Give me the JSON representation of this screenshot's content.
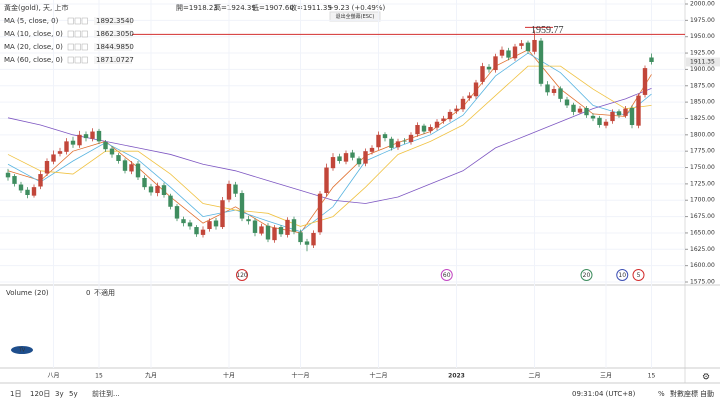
{
  "header": {
    "symbol": "黃金(gold), 天, 上市",
    "ohlc": [
      "開=1918.23",
      "高=1924.39",
      "低=1907.60",
      "收=1911.35"
    ],
    "change": "+9.23 (+0.49%)",
    "tooltip": "退出全螢幕(ESC)"
  },
  "chart_data": {
    "type": "candlestick",
    "open": [
      1742,
      1737,
      1724,
      1716,
      1707,
      1721,
      1741,
      1759,
      1771,
      1774,
      1791,
      1784,
      1801,
      1794,
      1806,
      1789,
      1779,
      1769,
      1761,
      1744,
      1756,
      1734,
      1721,
      1711,
      1723,
      1707,
      1691,
      1671,
      1666,
      1659,
      1647,
      1656,
      1669,
      1659,
      1701,
      1724,
      1711,
      1671,
      1669,
      1649,
      1661,
      1639,
      1659,
      1647,
      1671,
      1651,
      1637,
      1631,
      1651,
      1711,
      1749,
      1767,
      1759,
      1773,
      1764,
      1756,
      1774,
      1781,
      1801,
      1794,
      1781,
      1791,
      1789,
      1801,
      1814,
      1806,
      1811,
      1821,
      1824,
      1836,
      1839,
      1856,
      1859,
      1881,
      1904,
      1899,
      1921,
      1929,
      1917,
      1936,
      1941,
      1927,
      1944,
      1877,
      1864,
      1871,
      1854,
      1846,
      1834,
      1841,
      1829,
      1826,
      1814,
      1821,
      1836,
      1829,
      1841,
      1814,
      1861,
      1918.23
    ],
    "high": [
      1748,
      1740,
      1728,
      1720,
      1724,
      1745,
      1764,
      1776,
      1780,
      1795,
      1797,
      1806,
      1805,
      1810,
      1809,
      1792,
      1783,
      1772,
      1764,
      1760,
      1760,
      1738,
      1725,
      1727,
      1727,
      1710,
      1694,
      1675,
      1670,
      1662,
      1660,
      1672,
      1673,
      1705,
      1730,
      1728,
      1715,
      1676,
      1673,
      1664,
      1665,
      1662,
      1662,
      1674,
      1675,
      1655,
      1641,
      1654,
      1714,
      1756,
      1772,
      1771,
      1776,
      1777,
      1767,
      1779,
      1784,
      1805,
      1804,
      1797,
      1794,
      1795,
      1804,
      1819,
      1817,
      1816,
      1824,
      1829,
      1839,
      1845,
      1859,
      1865,
      1884,
      1910,
      1908,
      1924,
      1935,
      1933,
      1939,
      1945,
      1944,
      1959.77,
      1948,
      1882,
      1875,
      1874,
      1858,
      1849,
      1844,
      1844,
      1833,
      1829,
      1824,
      1839,
      1839,
      1844,
      1845,
      1863,
      1906,
      1924.39
    ],
    "low": [
      1730,
      1721,
      1711,
      1703,
      1704,
      1717,
      1737,
      1755,
      1767,
      1770,
      1780,
      1780,
      1790,
      1790,
      1786,
      1774,
      1765,
      1756,
      1741,
      1740,
      1731,
      1716,
      1707,
      1706,
      1704,
      1686,
      1668,
      1660,
      1655,
      1644,
      1643,
      1652,
      1655,
      1656,
      1697,
      1705,
      1668,
      1663,
      1645,
      1646,
      1636,
      1635,
      1644,
      1643,
      1648,
      1632,
      1622,
      1627,
      1647,
      1706,
      1745,
      1756,
      1755,
      1761,
      1751,
      1752,
      1770,
      1777,
      1790,
      1776,
      1777,
      1786,
      1785,
      1797,
      1801,
      1802,
      1807,
      1817,
      1820,
      1832,
      1835,
      1852,
      1855,
      1877,
      1895,
      1895,
      1917,
      1914,
      1913,
      1931,
      1924,
      1923,
      1874,
      1860,
      1860,
      1850,
      1841,
      1830,
      1832,
      1826,
      1821,
      1811,
      1810,
      1817,
      1826,
      1826,
      1810,
      1810,
      1857,
      1907.6
    ],
    "close": [
      1735,
      1725,
      1715,
      1708,
      1720,
      1740,
      1760,
      1770,
      1775,
      1790,
      1785,
      1800,
      1795,
      1805,
      1790,
      1778,
      1770,
      1760,
      1745,
      1755,
      1735,
      1720,
      1712,
      1722,
      1708,
      1690,
      1672,
      1665,
      1660,
      1648,
      1655,
      1668,
      1660,
      1700,
      1725,
      1710,
      1672,
      1668,
      1650,
      1660,
      1640,
      1658,
      1648,
      1670,
      1652,
      1636,
      1632,
      1650,
      1710,
      1750,
      1766,
      1760,
      1772,
      1765,
      1755,
      1775,
      1780,
      1800,
      1795,
      1780,
      1790,
      1790,
      1800,
      1815,
      1805,
      1812,
      1820,
      1825,
      1835,
      1840,
      1855,
      1860,
      1880,
      1905,
      1900,
      1920,
      1930,
      1918,
      1935,
      1940,
      1928,
      1945,
      1878,
      1865,
      1870,
      1855,
      1845,
      1835,
      1840,
      1830,
      1825,
      1815,
      1820,
      1835,
      1830,
      1840,
      1815,
      1860,
      1902,
      1911.35
    ],
    "up_color": "#c2463a",
    "down_color": "#3f8d5f",
    "ylim": [
      1575,
      2000
    ],
    "yticks": [
      {
        "value": 1575,
        "label": "1575.00"
      },
      {
        "value": 1600,
        "label": "1600.00"
      },
      {
        "value": 1625,
        "label": "1625.00"
      },
      {
        "value": 1650,
        "label": "1650.00"
      },
      {
        "value": 1675,
        "label": "1675.00"
      },
      {
        "value": 1700,
        "label": "1700.00"
      },
      {
        "value": 1725,
        "label": "1725.00"
      },
      {
        "value": 1750,
        "label": "1750.00"
      },
      {
        "value": 1775,
        "label": "1775.00"
      },
      {
        "value": 1800,
        "label": "1800.00"
      },
      {
        "value": 1825,
        "label": "1825.00"
      },
      {
        "value": 1850,
        "label": "1850.00"
      },
      {
        "value": 1875,
        "label": "1875.00"
      },
      {
        "value": 1900,
        "label": "1900.00"
      },
      {
        "value": 1925,
        "label": "1925.00"
      },
      {
        "value": 1950,
        "label": "1950.00"
      },
      {
        "value": 1975,
        "label": "1975.00"
      },
      {
        "value": 2000,
        "label": "2000.00"
      }
    ],
    "xticks": [
      {
        "value": 7,
        "label": "八月"
      },
      {
        "value": 14,
        "label": "15"
      },
      {
        "value": 22,
        "label": "九月"
      },
      {
        "value": 34,
        "label": "十月"
      },
      {
        "value": 45,
        "label": "十一月"
      },
      {
        "value": 57,
        "label": "十二月"
      },
      {
        "value": 69,
        "label": "2023"
      },
      {
        "value": 81,
        "label": "二月"
      },
      {
        "value": 92,
        "label": "三月"
      },
      {
        "value": 99,
        "label": "15"
      }
    ],
    "ma_x": [
      0,
      5,
      10,
      15,
      20,
      25,
      30,
      35,
      40,
      45,
      50,
      55,
      60,
      65,
      70,
      75,
      80,
      85,
      90,
      95,
      99
    ],
    "ma_series": [
      {
        "name": "MA (5, close, 0)",
        "color": "#e0702e",
        "value_label": "1892.3540",
        "values": [
          1745,
          1730,
          1775,
          1790,
          1750,
          1705,
          1665,
          1690,
          1660,
          1650,
          1720,
          1768,
          1788,
          1805,
          1843,
          1905,
          1930,
          1870,
          1832,
          1828,
          1892.354
        ]
      },
      {
        "name": "MA (10, close, 0)",
        "color": "#58b4e0",
        "value_label": "1862.3050",
        "values": [
          1755,
          1728,
          1760,
          1788,
          1762,
          1720,
          1675,
          1685,
          1668,
          1652,
          1690,
          1760,
          1782,
          1800,
          1830,
          1890,
          1925,
          1895,
          1845,
          1830,
          1862.305
        ]
      },
      {
        "name": "MA (20, close, 0)",
        "color": "#f0c242",
        "value_label": "1844.9850",
        "values": [
          1770,
          1745,
          1740,
          1775,
          1775,
          1740,
          1695,
          1685,
          1680,
          1660,
          1675,
          1720,
          1770,
          1790,
          1815,
          1860,
          1905,
          1905,
          1870,
          1840,
          1844.985
        ]
      },
      {
        "name": "MA (60, close, 0)",
        "color": "#7e57c2",
        "value_label": "1871.0727",
        "values": [
          1826,
          1815,
          1800,
          1790,
          1780,
          1770,
          1755,
          1745,
          1730,
          1715,
          1700,
          1695,
          1705,
          1725,
          1745,
          1780,
          1800,
          1820,
          1840,
          1855,
          1871.0727
        ]
      }
    ],
    "high_marker": 1959.77,
    "markers": [
      "120",
      "60",
      "20",
      "10",
      "5"
    ]
  },
  "volume": {
    "title": "Volume (20)",
    "value": 0,
    "status": "不適用"
  },
  "toolbar": {
    "ranges": [
      "1日",
      "120日",
      "3y",
      "5y"
    ],
    "goto": "前往到...",
    "time": "09:31:04 (UTC+8)",
    "percent": "%",
    "log": "對數座標",
    "auto": "自動"
  }
}
